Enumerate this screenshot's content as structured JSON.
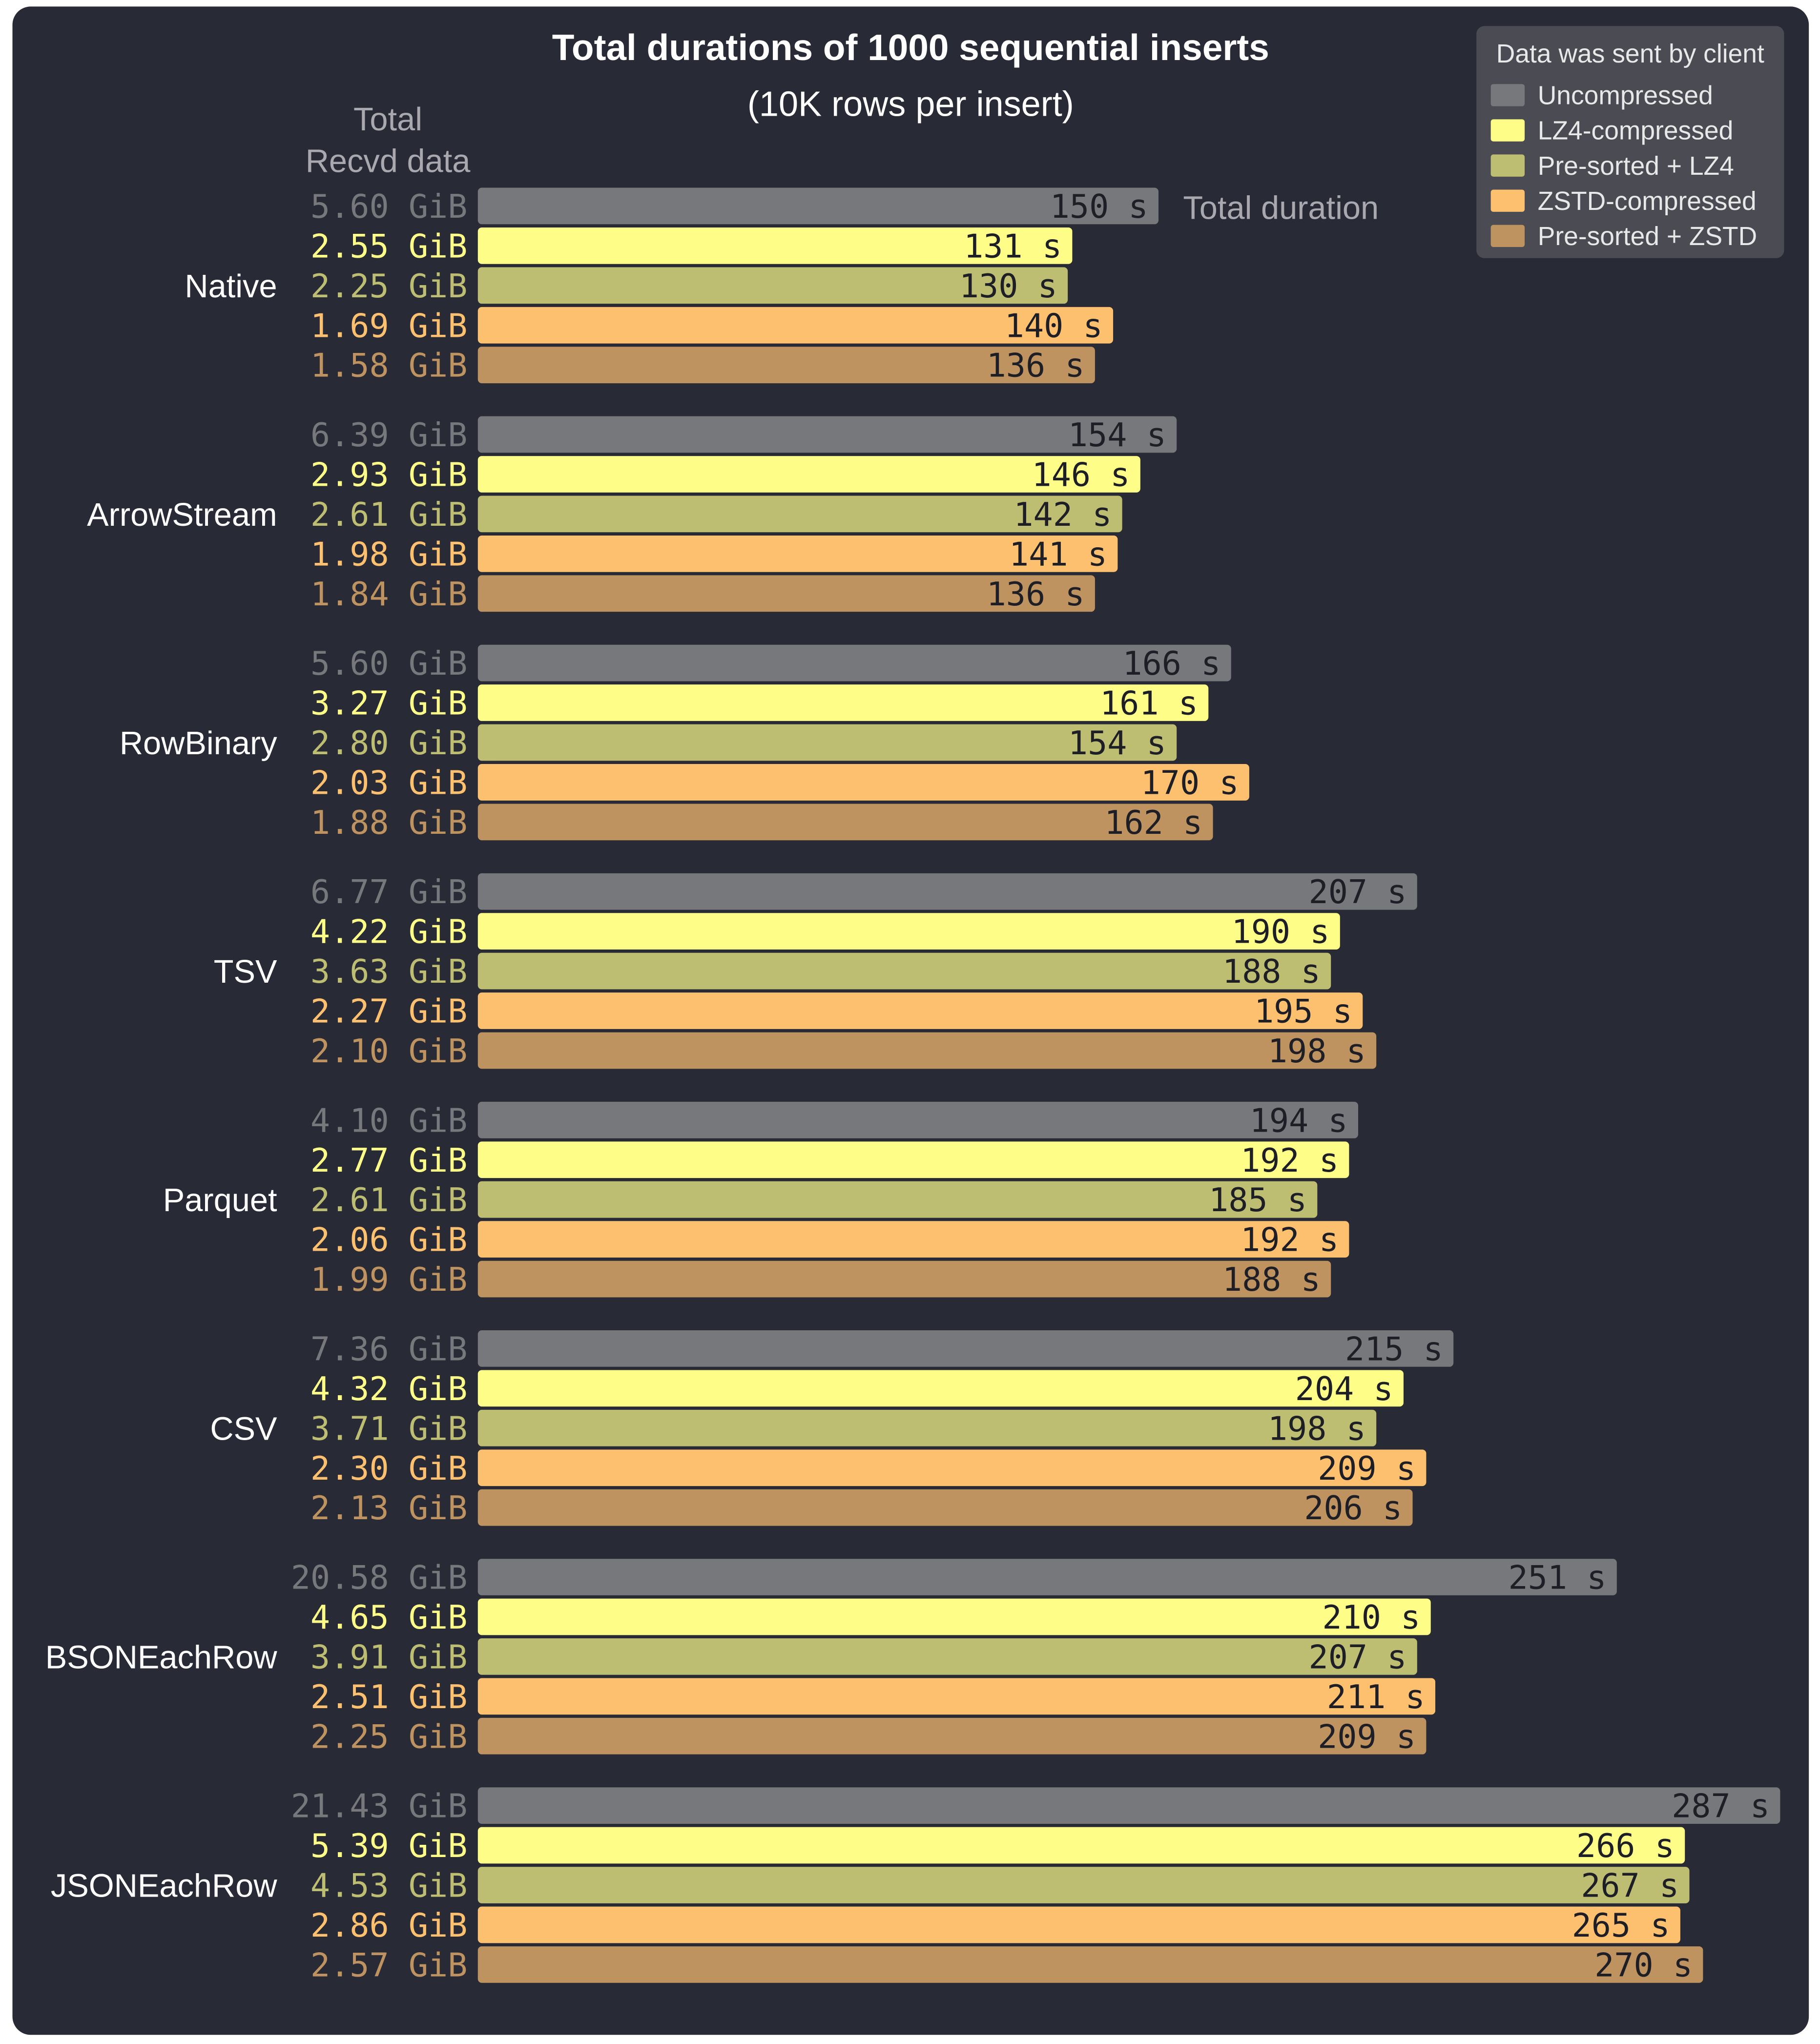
{
  "chart_data": {
    "type": "bar",
    "orientation": "horizontal",
    "title": "Total durations of 1000 sequential inserts",
    "subtitle": "(10K rows per insert)",
    "left_column_header": [
      "Total",
      "Recvd data"
    ],
    "value_header": "Total duration",
    "value_unit": "s",
    "size_unit": "GiB",
    "legend": {
      "title": "Data was sent by client",
      "placement": "top-right",
      "entries": [
        "Uncompressed",
        "LZ4-compressed",
        "Pre-sorted + LZ4",
        "ZSTD-compressed",
        "Pre-sorted + ZSTD"
      ]
    },
    "colors": [
      "#77787c",
      "#fdfd87",
      "#bdbe72",
      "#fdc06e",
      "#be9360"
    ],
    "categories": [
      "Native",
      "ArrowStream",
      "RowBinary",
      "TSV",
      "Parquet",
      "CSV",
      "BSONEachRow",
      "JSONEachRow"
    ],
    "series": [
      {
        "name": "Uncompressed",
        "durations": [
          150,
          154,
          166,
          207,
          194,
          215,
          251,
          287
        ],
        "recvd_gib": [
          "5.60",
          "6.39",
          "5.60",
          "6.77",
          "4.10",
          "7.36",
          "20.58",
          "21.43"
        ]
      },
      {
        "name": "LZ4-compressed",
        "durations": [
          131,
          146,
          161,
          190,
          192,
          204,
          210,
          266
        ],
        "recvd_gib": [
          "2.55",
          "2.93",
          "3.27",
          "4.22",
          "2.77",
          "4.32",
          "4.65",
          "5.39"
        ]
      },
      {
        "name": "Pre-sorted + LZ4",
        "durations": [
          130,
          142,
          154,
          188,
          185,
          198,
          207,
          267
        ],
        "recvd_gib": [
          "2.25",
          "2.61",
          "2.80",
          "3.63",
          "2.61",
          "3.71",
          "3.91",
          "4.53"
        ]
      },
      {
        "name": "ZSTD-compressed",
        "durations": [
          140,
          141,
          170,
          195,
          192,
          209,
          211,
          265
        ],
        "recvd_gib": [
          "1.69",
          "1.98",
          "2.03",
          "2.27",
          "2.06",
          "2.30",
          "2.51",
          "2.86"
        ]
      },
      {
        "name": "Pre-sorted + ZSTD",
        "durations": [
          136,
          136,
          162,
          198,
          188,
          206,
          209,
          270
        ],
        "recvd_gib": [
          "1.58",
          "1.84",
          "1.88",
          "2.10",
          "1.99",
          "2.13",
          "2.25",
          "2.57"
        ]
      }
    ],
    "xlim": [
      0,
      287
    ],
    "grid": false
  },
  "style": {
    "background": "#282a36",
    "legend_background": "#4a4b53",
    "text": "#ffffff",
    "muted_text": "#b8b8bc"
  }
}
